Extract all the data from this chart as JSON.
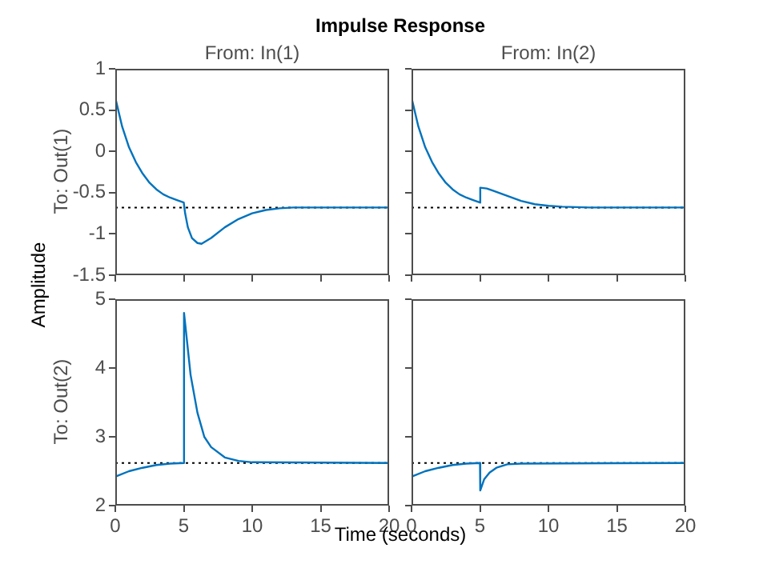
{
  "chart_data": [
    {
      "type": "line",
      "title": "Impulse Response",
      "subtitle": "From: In(1)",
      "ylabel": "To: Out(1)",
      "xlim": [
        0,
        20
      ],
      "xticks": [
        0,
        5,
        10,
        15,
        20
      ],
      "ylim": [
        -1.5,
        1
      ],
      "yticks": [
        -1.5,
        -1,
        -0.5,
        0,
        0.5,
        1
      ],
      "tick_labels": "y",
      "grid": false,
      "legend": false,
      "marker": "none",
      "ref_lines": [
        {
          "axis": "y",
          "value": -0.68,
          "line_style": "dotted",
          "color": "#000000"
        }
      ],
      "series": [
        {
          "color": "#0072bd",
          "x": [
            0,
            0.5,
            1,
            1.5,
            2,
            2.5,
            3,
            3.5,
            4,
            4.5,
            5,
            5.1,
            5.3,
            5.6,
            6,
            6.3,
            7,
            8,
            9,
            10,
            11,
            12,
            13,
            15,
            20
          ],
          "values": [
            0.65,
            0.3,
            0.05,
            -0.13,
            -0.27,
            -0.38,
            -0.46,
            -0.52,
            -0.56,
            -0.59,
            -0.62,
            -0.75,
            -0.92,
            -1.05,
            -1.11,
            -1.12,
            -1.05,
            -0.92,
            -0.82,
            -0.75,
            -0.71,
            -0.69,
            -0.68,
            -0.68,
            -0.68
          ]
        }
      ]
    },
    {
      "type": "line",
      "subtitle": "From: In(2)",
      "xlim": [
        0,
        20
      ],
      "xticks": [
        0,
        5,
        10,
        15,
        20
      ],
      "ylim": [
        -1.5,
        1
      ],
      "yticks": [
        -1.5,
        -1,
        -0.5,
        0,
        0.5,
        1
      ],
      "tick_labels": false,
      "grid": false,
      "legend": false,
      "marker": "none",
      "ref_lines": [
        {
          "axis": "y",
          "value": -0.68,
          "line_style": "dotted",
          "color": "#000000"
        }
      ],
      "series": [
        {
          "color": "#0072bd",
          "x": [
            0,
            0.5,
            1,
            1.5,
            2,
            2.5,
            3,
            3.5,
            4,
            4.5,
            5,
            5.02,
            5.5,
            6,
            7,
            8,
            9,
            10,
            11,
            13,
            20
          ],
          "values": [
            0.65,
            0.3,
            0.05,
            -0.13,
            -0.27,
            -0.38,
            -0.46,
            -0.52,
            -0.56,
            -0.59,
            -0.62,
            -0.44,
            -0.45,
            -0.48,
            -0.54,
            -0.6,
            -0.64,
            -0.66,
            -0.67,
            -0.68,
            -0.68
          ]
        }
      ]
    },
    {
      "type": "line",
      "ylabel": "To: Out(2)",
      "xlim": [
        0,
        20
      ],
      "xticks": [
        0,
        5,
        10,
        15,
        20
      ],
      "ylim": [
        2,
        5
      ],
      "yticks": [
        2,
        3,
        4,
        5
      ],
      "grid": false,
      "legend": false,
      "marker": "none",
      "annotations": [
        "Time (seconds)",
        "Amplitude"
      ],
      "ref_lines": [
        {
          "axis": "y",
          "value": 2.62,
          "line_style": "dotted",
          "color": "#000000"
        }
      ],
      "series": [
        {
          "color": "#0072bd",
          "x": [
            0,
            1,
            2,
            3,
            4,
            5,
            5.02,
            5.5,
            6,
            6.5,
            7,
            8,
            9,
            10,
            20
          ],
          "values": [
            2.42,
            2.5,
            2.55,
            2.59,
            2.61,
            2.62,
            4.8,
            3.9,
            3.35,
            3.0,
            2.85,
            2.7,
            2.65,
            2.63,
            2.62
          ]
        }
      ]
    },
    {
      "type": "line",
      "xlim": [
        0,
        20
      ],
      "xticks": [
        0,
        5,
        10,
        15,
        20
      ],
      "ylim": [
        2,
        5
      ],
      "yticks": [
        2,
        3,
        4,
        5
      ],
      "tick_labels": "x",
      "grid": false,
      "legend": false,
      "marker": "none",
      "ref_lines": [
        {
          "axis": "y",
          "value": 2.62,
          "line_style": "dotted",
          "color": "#000000"
        }
      ],
      "series": [
        {
          "color": "#0072bd",
          "x": [
            0,
            1,
            2,
            3,
            4,
            5,
            5.02,
            5.3,
            5.7,
            6.2,
            7,
            8,
            20
          ],
          "values": [
            2.42,
            2.5,
            2.55,
            2.59,
            2.61,
            2.62,
            2.22,
            2.38,
            2.48,
            2.55,
            2.6,
            2.61,
            2.62
          ]
        }
      ]
    }
  ]
}
